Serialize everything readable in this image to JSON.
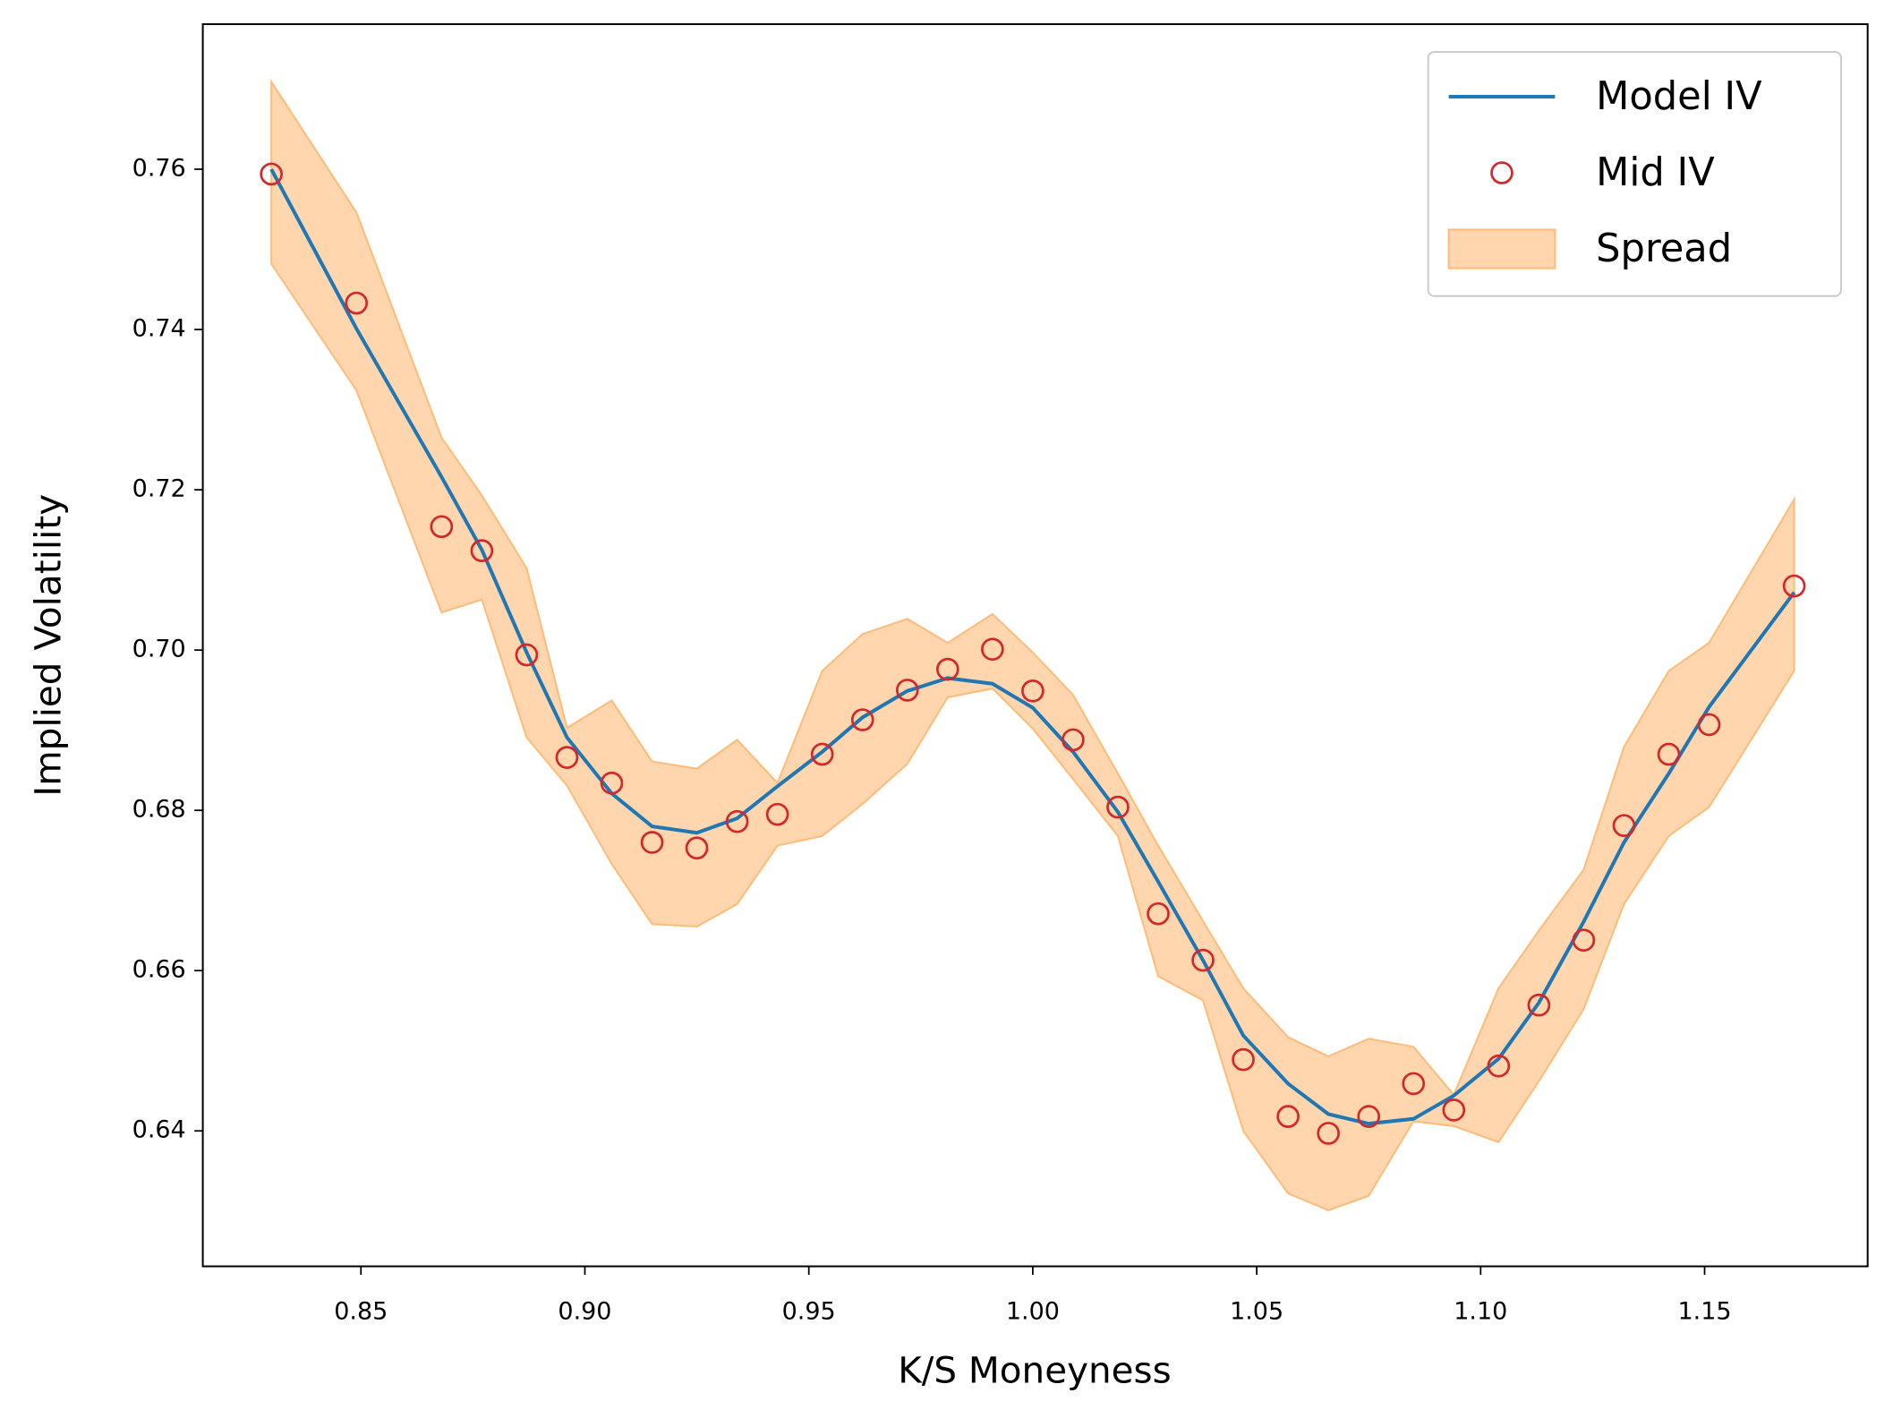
{
  "chart_data": {
    "type": "line",
    "xlabel": "K/S Moneyness",
    "ylabel": "Implied Volatility",
    "x": [
      0.83,
      0.849,
      0.868,
      0.877,
      0.887,
      0.896,
      0.906,
      0.915,
      0.925,
      0.934,
      0.943,
      0.953,
      0.962,
      0.972,
      0.981,
      0.991,
      1.0,
      1.009,
      1.019,
      1.028,
      1.038,
      1.047,
      1.057,
      1.066,
      1.075,
      1.085,
      1.094,
      1.104,
      1.113,
      1.123,
      1.132,
      1.142,
      1.151,
      1.17
    ],
    "series": [
      {
        "name": "Model IV",
        "style": "line",
        "color": "#1f77b4",
        "values": [
          0.76,
          0.7401,
          0.7216,
          0.7125,
          0.6997,
          0.6891,
          0.6821,
          0.678,
          0.6772,
          0.679,
          0.683,
          0.6873,
          0.6916,
          0.6949,
          0.6965,
          0.6958,
          0.6928,
          0.6873,
          0.6798,
          0.6711,
          0.6613,
          0.6519,
          0.6459,
          0.6421,
          0.6409,
          0.6415,
          0.6444,
          0.649,
          0.656,
          0.6661,
          0.676,
          0.6846,
          0.6929,
          0.7072
        ]
      },
      {
        "name": "Mid IV",
        "style": "markers",
        "color": "#d62728",
        "values": [
          0.7594,
          0.7433,
          0.7154,
          0.7124,
          0.6994,
          0.6866,
          0.6834,
          0.676,
          0.6753,
          0.6786,
          0.6795,
          0.687,
          0.6913,
          0.695,
          0.6976,
          0.7001,
          0.6949,
          0.6888,
          0.6804,
          0.6671,
          0.6613,
          0.6489,
          0.6418,
          0.6397,
          0.6418,
          0.6459,
          0.6426,
          0.6481,
          0.6557,
          0.6638,
          0.6781,
          0.687,
          0.6907,
          0.708
        ]
      },
      {
        "name": "Spread",
        "style": "band",
        "color": "#ffbb78",
        "upper": [
          0.7709,
          0.7546,
          0.7265,
          0.7193,
          0.7102,
          0.6903,
          0.6937,
          0.6861,
          0.6852,
          0.6888,
          0.6834,
          0.6974,
          0.702,
          0.7039,
          0.7009,
          0.7045,
          0.6997,
          0.6944,
          0.6846,
          0.6756,
          0.6662,
          0.6578,
          0.6517,
          0.6493,
          0.6515,
          0.6505,
          0.6445,
          0.6578,
          0.665,
          0.6726,
          0.6879,
          0.6974,
          0.7009,
          0.7188
        ],
        "lower": [
          0.7482,
          0.7324,
          0.7047,
          0.7063,
          0.6891,
          0.6831,
          0.6733,
          0.6658,
          0.6655,
          0.6683,
          0.6756,
          0.6768,
          0.6808,
          0.6858,
          0.6941,
          0.6952,
          0.6902,
          0.6839,
          0.6768,
          0.6593,
          0.6563,
          0.64,
          0.6322,
          0.6301,
          0.6319,
          0.6412,
          0.6406,
          0.6386,
          0.6462,
          0.6552,
          0.6683,
          0.6768,
          0.6804,
          0.6974
        ]
      }
    ],
    "xlim": [
      0.8147,
      1.1864
    ],
    "ylim": [
      0.6231,
      0.7781
    ],
    "xticks": [
      0.85,
      {
        "value": 0.9,
        "label": "0.90"
      },
      0.95,
      {
        "value": 1.0,
        "label": "1.00"
      },
      1.05,
      {
        "value": 1.1,
        "label": "1.10"
      },
      1.15
    ],
    "yticks": [
      0.64,
      0.66,
      0.68,
      {
        "value": 0.7,
        "label": "0.70"
      },
      0.72,
      0.74,
      0.76
    ],
    "legend": "upper right"
  }
}
